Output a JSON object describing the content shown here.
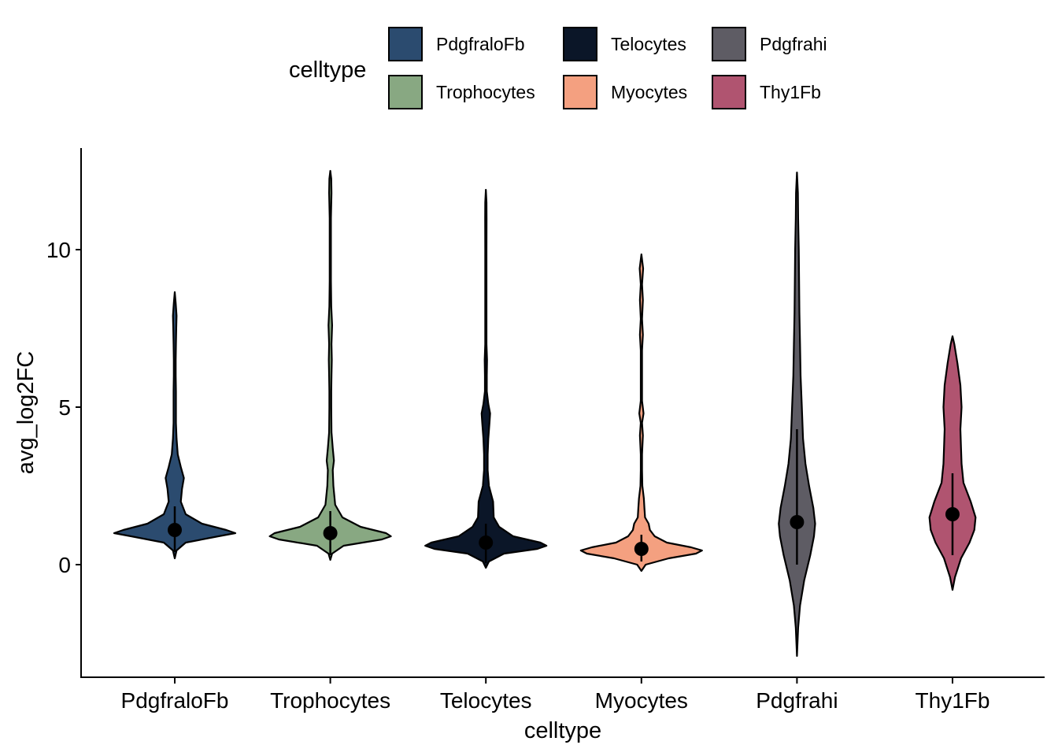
{
  "chart_data": {
    "type": "violin",
    "xlabel": "celltype",
    "ylabel": "avg_log2FC",
    "ylim": [
      -3.5,
      13.2
    ],
    "yticks": [
      0,
      5,
      10
    ],
    "grid": false,
    "legend": {
      "title": "celltype",
      "position": "top"
    },
    "categories": [
      "PdgfraloFb",
      "Trophocytes",
      "Telocytes",
      "Myocytes",
      "Pdgfrahi",
      "Thy1Fb"
    ],
    "series": [
      {
        "name": "PdgfraloFb",
        "color": "#2b4b6f",
        "median": 1.1,
        "q_range": [
          0.4,
          1.85
        ],
        "profile": [
          [
            0.2,
            0
          ],
          [
            0.45,
            0.03
          ],
          [
            0.7,
            0.18
          ],
          [
            0.9,
            0.72
          ],
          [
            1.0,
            1.0
          ],
          [
            1.1,
            0.85
          ],
          [
            1.3,
            0.45
          ],
          [
            1.6,
            0.18
          ],
          [
            2.0,
            0.1
          ],
          [
            2.4,
            0.12
          ],
          [
            2.75,
            0.15
          ],
          [
            3.1,
            0.1
          ],
          [
            3.5,
            0.05
          ],
          [
            4.0,
            0.03
          ],
          [
            4.5,
            0.02
          ],
          [
            5.0,
            0.02
          ],
          [
            5.5,
            0.02
          ],
          [
            6.0,
            0.015
          ],
          [
            6.5,
            0.015
          ],
          [
            7.0,
            0.02
          ],
          [
            7.5,
            0.025
          ],
          [
            7.9,
            0.03
          ],
          [
            8.3,
            0.015
          ],
          [
            8.65,
            0
          ]
        ]
      },
      {
        "name": "Trophocytes",
        "color": "#88a882",
        "median": 1.0,
        "q_range": [
          0.3,
          1.7
        ],
        "profile": [
          [
            0.15,
            0
          ],
          [
            0.35,
            0.03
          ],
          [
            0.6,
            0.22
          ],
          [
            0.8,
            0.85
          ],
          [
            0.9,
            1.0
          ],
          [
            1.0,
            0.92
          ],
          [
            1.2,
            0.5
          ],
          [
            1.5,
            0.2
          ],
          [
            1.9,
            0.08
          ],
          [
            2.5,
            0.05
          ],
          [
            3.0,
            0.04
          ],
          [
            3.3,
            0.06
          ],
          [
            3.7,
            0.04
          ],
          [
            4.2,
            0.02
          ],
          [
            5.0,
            0.015
          ],
          [
            5.5,
            0.015
          ],
          [
            6.0,
            0.02
          ],
          [
            6.5,
            0.025
          ],
          [
            7.0,
            0.02
          ],
          [
            7.6,
            0.03
          ],
          [
            8.2,
            0.015
          ],
          [
            9.0,
            0.01
          ],
          [
            10.0,
            0.01
          ],
          [
            11.0,
            0.01
          ],
          [
            11.8,
            0.02
          ],
          [
            12.25,
            0.015
          ],
          [
            12.5,
            0
          ]
        ]
      },
      {
        "name": "Telocytes",
        "color": "#0b1628",
        "median": 0.7,
        "q_range": [
          0.05,
          1.3
        ],
        "profile": [
          [
            -0.1,
            0
          ],
          [
            0.1,
            0.05
          ],
          [
            0.35,
            0.3
          ],
          [
            0.5,
            0.85
          ],
          [
            0.6,
            1.0
          ],
          [
            0.7,
            0.9
          ],
          [
            0.9,
            0.45
          ],
          [
            1.2,
            0.22
          ],
          [
            1.5,
            0.13
          ],
          [
            2.0,
            0.12
          ],
          [
            2.5,
            0.05
          ],
          [
            3.0,
            0.03
          ],
          [
            3.5,
            0.03
          ],
          [
            4.0,
            0.04
          ],
          [
            4.5,
            0.06
          ],
          [
            4.8,
            0.07
          ],
          [
            5.1,
            0.04
          ],
          [
            5.5,
            0.015
          ],
          [
            6.0,
            0.015
          ],
          [
            6.5,
            0.02
          ],
          [
            7.0,
            0.01
          ],
          [
            8.0,
            0.01
          ],
          [
            9.0,
            0.01
          ],
          [
            10.0,
            0.01
          ],
          [
            11.0,
            0.012
          ],
          [
            11.5,
            0.01
          ],
          [
            11.9,
            0
          ]
        ]
      },
      {
        "name": "Myocytes",
        "color": "#f4a080",
        "median": 0.5,
        "q_range": [
          0.1,
          0.95
        ],
        "profile": [
          [
            -0.2,
            0
          ],
          [
            0.0,
            0.07
          ],
          [
            0.2,
            0.45
          ],
          [
            0.35,
            0.9
          ],
          [
            0.45,
            1.0
          ],
          [
            0.55,
            0.82
          ],
          [
            0.7,
            0.42
          ],
          [
            0.9,
            0.22
          ],
          [
            1.1,
            0.14
          ],
          [
            1.3,
            0.12
          ],
          [
            1.5,
            0.06
          ],
          [
            1.8,
            0.05
          ],
          [
            2.1,
            0.04
          ],
          [
            2.5,
            0.015
          ],
          [
            3.0,
            0.01
          ],
          [
            3.5,
            0.01
          ],
          [
            4.1,
            0.025
          ],
          [
            4.5,
            0.01
          ],
          [
            4.8,
            0.035
          ],
          [
            5.2,
            0.01
          ],
          [
            6.0,
            0.01
          ],
          [
            6.8,
            0.01
          ],
          [
            7.3,
            0.025
          ],
          [
            7.8,
            0.01
          ],
          [
            8.4,
            0.025
          ],
          [
            8.9,
            0.01
          ],
          [
            9.4,
            0.028
          ],
          [
            9.85,
            0
          ]
        ]
      },
      {
        "name": "Pdgfrahi",
        "color": "#5e5c64",
        "median": 1.35,
        "q_range": [
          0.0,
          4.3
        ],
        "profile": [
          [
            -2.9,
            0
          ],
          [
            -2.0,
            0.02
          ],
          [
            -1.3,
            0.05
          ],
          [
            -0.5,
            0.12
          ],
          [
            0.3,
            0.22
          ],
          [
            0.9,
            0.28
          ],
          [
            1.3,
            0.3
          ],
          [
            1.8,
            0.27
          ],
          [
            2.5,
            0.2
          ],
          [
            3.2,
            0.14
          ],
          [
            4.0,
            0.1
          ],
          [
            5.0,
            0.08
          ],
          [
            6.0,
            0.06
          ],
          [
            7.0,
            0.05
          ],
          [
            8.0,
            0.04
          ],
          [
            9.0,
            0.035
          ],
          [
            10.0,
            0.03
          ],
          [
            11.0,
            0.02
          ],
          [
            11.8,
            0.015
          ],
          [
            12.45,
            0
          ]
        ]
      },
      {
        "name": "Thy1Fb",
        "color": "#b05470",
        "median": 1.6,
        "q_range": [
          0.3,
          2.9
        ],
        "profile": [
          [
            -0.8,
            0
          ],
          [
            -0.4,
            0.04
          ],
          [
            0.2,
            0.14
          ],
          [
            0.7,
            0.28
          ],
          [
            1.1,
            0.36
          ],
          [
            1.5,
            0.38
          ],
          [
            2.0,
            0.3
          ],
          [
            2.6,
            0.18
          ],
          [
            3.2,
            0.15
          ],
          [
            3.7,
            0.14
          ],
          [
            4.3,
            0.13
          ],
          [
            5.0,
            0.15
          ],
          [
            5.7,
            0.13
          ],
          [
            6.4,
            0.08
          ],
          [
            7.0,
            0.03
          ],
          [
            7.25,
            0
          ]
        ]
      }
    ]
  }
}
